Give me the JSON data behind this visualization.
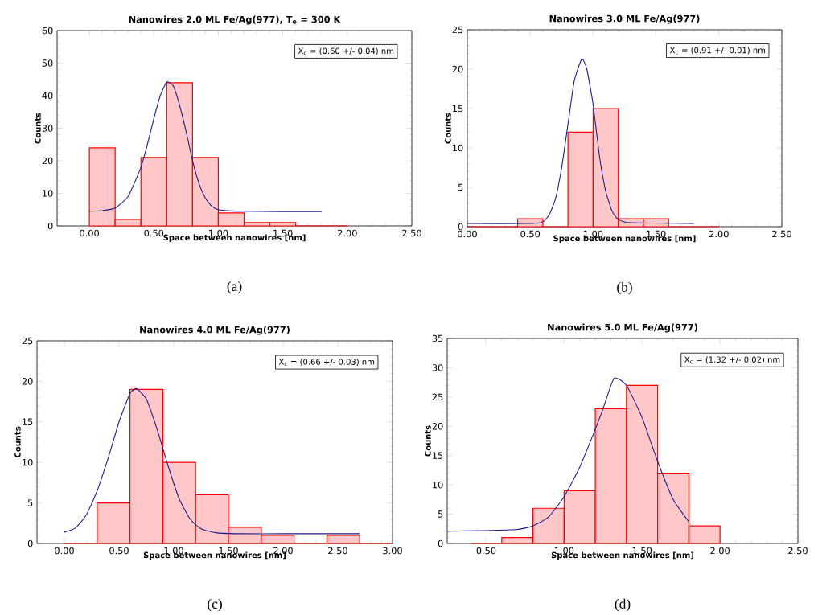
{
  "chart_data": [
    {
      "type": "histogram",
      "title": "Nanowires 2.0 ML Fe/Ag(977), T$_{e}$ = 300 K",
      "xlabel": "Space between nanowires [nm]",
      "ylabel": "Counts",
      "annotations": [
        "X$_{c}$ = (0.60 +/- 0.04) nm",
        "(a)"
      ],
      "bins": [
        0,
        0.2,
        0.4,
        0.6,
        0.8,
        1.0,
        1.2,
        1.4,
        1.6,
        1.8,
        2.0
      ],
      "series": [
        {
          "color": "#ff0000",
          "values": [
            24,
            2,
            21,
            44,
            21,
            4,
            1,
            1,
            0,
            0
          ]
        },
        {
          "type": "line",
          "color": "#1a1a8c",
          "x": [
            0,
            0.1,
            0.2,
            0.3,
            0.4,
            0.45,
            0.5,
            0.55,
            0.6,
            0.65,
            0.7,
            0.75,
            0.8,
            0.85,
            0.9,
            0.95,
            1.0,
            1.1,
            1.2,
            1.5,
            1.8
          ],
          "values": [
            4.5,
            4.7,
            5.5,
            9,
            18,
            25,
            33,
            40,
            44.2,
            43,
            37,
            29,
            20,
            13,
            8.5,
            6,
            5,
            4.6,
            4.5,
            4.4,
            4.4
          ]
        }
      ],
      "xlim": [
        -0.25,
        2.5
      ],
      "ylim": [
        0,
        60
      ],
      "xticks": [
        {
          "value": 0,
          "label": "0.00"
        },
        {
          "value": 0.5,
          "label": "0.50"
        },
        {
          "value": 1.0,
          "label": "1.00"
        },
        {
          "value": 1.5,
          "label": "1.50"
        },
        {
          "value": 2.0,
          "label": "2.00"
        },
        {
          "value": 2.5,
          "label": "2.50"
        }
      ],
      "yticks": [
        0,
        10,
        20,
        30,
        40,
        50,
        60
      ]
    },
    {
      "type": "histogram",
      "title": "Nanowires 3.0 ML Fe/Ag(977)",
      "xlabel": "Space between nanowires [nm]",
      "ylabel": "Counts",
      "annotations": [
        "X$_{c}$ = (0.91 +/- 0.01) nm",
        "(b)"
      ],
      "bins": [
        0,
        0.2,
        0.4,
        0.6,
        0.8,
        1.0,
        1.2,
        1.4,
        1.6,
        1.8,
        2.0
      ],
      "series": [
        {
          "color": "#ff0000",
          "values": [
            0,
            0,
            1,
            0,
            12,
            15,
            1,
            1,
            0,
            0
          ]
        },
        {
          "type": "line",
          "color": "#1a1a8c",
          "x": [
            0,
            0.5,
            0.6,
            0.65,
            0.7,
            0.75,
            0.8,
            0.85,
            0.91,
            0.95,
            1.0,
            1.05,
            1.1,
            1.15,
            1.2,
            1.3,
            1.8
          ],
          "values": [
            0.4,
            0.4,
            0.6,
            1.5,
            3.5,
            7.5,
            13,
            18.5,
            21.3,
            20,
            15.5,
            9,
            4.5,
            2,
            0.9,
            0.5,
            0.4
          ]
        }
      ],
      "xlim": [
        0,
        2.5
      ],
      "ylim": [
        0,
        25
      ],
      "xticks": [
        {
          "value": 0,
          "label": "0.00"
        },
        {
          "value": 0.5,
          "label": "0.50"
        },
        {
          "value": 1.0,
          "label": "1.00"
        },
        {
          "value": 1.5,
          "label": "1.50"
        },
        {
          "value": 2.0,
          "label": "2.00"
        },
        {
          "value": 2.5,
          "label": "2.50"
        }
      ],
      "yticks": [
        0,
        5,
        10,
        15,
        20,
        25
      ]
    },
    {
      "type": "histogram",
      "title": "Nanowires 4.0 ML Fe/Ag(977)",
      "xlabel": "Space between nanowires [nm]",
      "ylabel": "Counts",
      "annotations": [
        "X$_{c}$ = (0.66 +/- 0.03) nm",
        "(c)"
      ],
      "bins": [
        0,
        0.3,
        0.6,
        0.9,
        1.2,
        1.5,
        1.8,
        2.1,
        2.4,
        2.7,
        3.0
      ],
      "series": [
        {
          "color": "#ff0000",
          "values": [
            0,
            5,
            19,
            10,
            6,
            2,
            1,
            0,
            1,
            0
          ]
        },
        {
          "type": "line",
          "color": "#1a1a8c",
          "x": [
            0,
            0.1,
            0.2,
            0.3,
            0.4,
            0.5,
            0.6,
            0.66,
            0.75,
            0.85,
            0.95,
            1.05,
            1.15,
            1.25,
            1.4,
            1.6,
            2.0,
            2.7
          ],
          "values": [
            1.4,
            1.9,
            3.5,
            6.5,
            10.5,
            15,
            18.5,
            19.1,
            17.8,
            14,
            9.5,
            5.5,
            3,
            1.8,
            1.3,
            1.2,
            1.2,
            1.2
          ]
        }
      ],
      "xlim": [
        -0.25,
        3.0
      ],
      "ylim": [
        0,
        25
      ],
      "xticks": [
        {
          "value": 0,
          "label": "0.00"
        },
        {
          "value": 0.5,
          "label": "0.50"
        },
        {
          "value": 1.0,
          "label": "1.00"
        },
        {
          "value": 1.5,
          "label": "1.50"
        },
        {
          "value": 2.0,
          "label": "2.00"
        },
        {
          "value": 2.5,
          "label": "2.50"
        },
        {
          "value": 3.0,
          "label": "3.00"
        }
      ],
      "yticks": [
        0,
        5,
        10,
        15,
        20,
        25
      ]
    },
    {
      "type": "histogram",
      "title": "Nanowires 5.0 ML Fe/Ag(977)",
      "xlabel": "Space between nanowires [nm]",
      "ylabel": "Counts",
      "annotations": [
        "X$_{c}$ = (1.32 +/- 0.02) nm",
        "(d)"
      ],
      "bins": [
        0.4,
        0.6,
        0.8,
        1.0,
        1.2,
        1.4,
        1.6,
        1.8,
        2.0
      ],
      "series": [
        {
          "color": "#ff0000",
          "values": [
            0,
            1,
            6,
            9,
            23,
            27,
            12,
            3
          ]
        },
        {
          "type": "line",
          "color": "#1a1a8c",
          "x": [
            0.25,
            0.5,
            0.7,
            0.8,
            0.9,
            1.0,
            1.1,
            1.2,
            1.25,
            1.32,
            1.4,
            1.5,
            1.6,
            1.7,
            1.8
          ],
          "values": [
            2.1,
            2.2,
            2.4,
            3,
            4.5,
            8,
            13,
            19.5,
            23,
            28.2,
            27,
            21.5,
            14,
            7.5,
            3.7
          ]
        }
      ],
      "xlim": [
        0.25,
        2.5
      ],
      "ylim": [
        0,
        35
      ],
      "xticks": [
        {
          "value": 0.5,
          "label": "0.50"
        },
        {
          "value": 1.0,
          "label": "1.00"
        },
        {
          "value": 1.5,
          "label": "1.50"
        },
        {
          "value": 2.0,
          "label": "2.00"
        },
        {
          "value": 2.5,
          "label": "2.50"
        }
      ],
      "yticks": [
        0,
        5,
        10,
        15,
        20,
        25,
        30,
        35
      ]
    }
  ]
}
